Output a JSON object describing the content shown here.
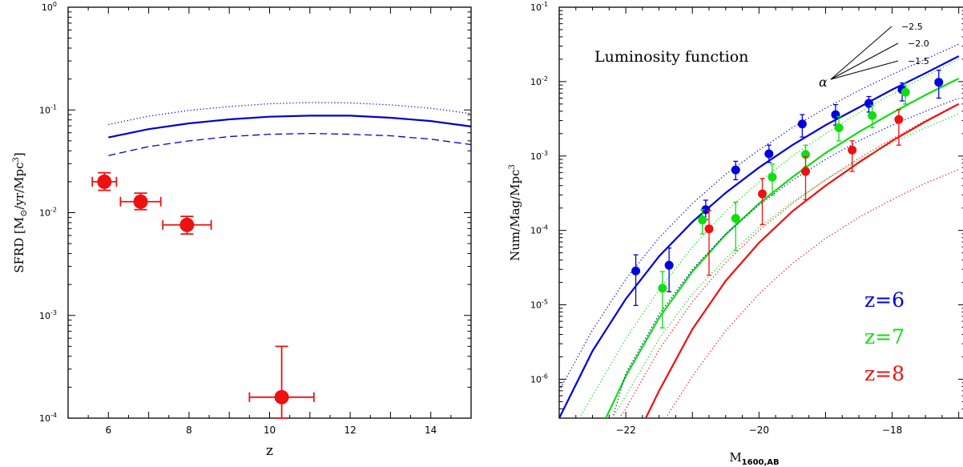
{
  "chart_data": [
    {
      "type": "scatter",
      "xlabel": "z",
      "ylabel_main": "SFRD [M",
      "ylabel_sub": "⊙",
      "ylabel_rest": "/yr/Mpc",
      "ylabel_sup": "3",
      "ylabel_end": "]",
      "xlim": [
        5,
        15
      ],
      "ylim": [
        0.0001,
        1
      ],
      "yscale": "log",
      "xticks": [
        6,
        8,
        10,
        12,
        14
      ],
      "xtick_labels": [
        "6",
        "8",
        "10",
        "12",
        "14"
      ],
      "yticks": [
        0.0001,
        0.001,
        0.01,
        0.1,
        1
      ],
      "ytick_base": [
        "10",
        "10",
        "10",
        "10",
        "10"
      ],
      "ytick_exp": [
        "-4",
        "-3",
        "-2",
        "-1",
        "0"
      ],
      "series": [
        {
          "style": "dotted",
          "color": "#0000cc",
          "x": [
            6,
            7,
            8,
            9,
            10,
            11,
            12,
            13,
            14,
            15
          ],
          "y": [
            0.072,
            0.087,
            0.099,
            0.108,
            0.115,
            0.118,
            0.117,
            0.112,
            0.104,
            0.092
          ]
        },
        {
          "style": "solid",
          "color": "#0000cc",
          "x": [
            6,
            7,
            8,
            9,
            10,
            11,
            12,
            13,
            14,
            15
          ],
          "y": [
            0.054,
            0.065,
            0.074,
            0.081,
            0.086,
            0.088,
            0.088,
            0.084,
            0.078,
            0.069
          ]
        },
        {
          "style": "dashed",
          "color": "#0000cc",
          "x": [
            6,
            7,
            8,
            9,
            10,
            11,
            12,
            13,
            14,
            15
          ],
          "y": [
            0.036,
            0.044,
            0.05,
            0.055,
            0.058,
            0.059,
            0.058,
            0.056,
            0.052,
            0.046
          ]
        }
      ],
      "points": {
        "color": "#ee1111",
        "data": [
          {
            "x": 5.9,
            "y": 0.02,
            "xerr": 0.3,
            "ylo": 0.0165,
            "yhi": 0.0245
          },
          {
            "x": 6.8,
            "y": 0.0128,
            "xerr": 0.5,
            "ylo": 0.0107,
            "yhi": 0.0155
          },
          {
            "x": 7.95,
            "y": 0.0076,
            "xerr": 0.6,
            "ylo": 0.0062,
            "yhi": 0.0092
          },
          {
            "x": 10.3,
            "y": 0.00016,
            "xerr": 0.8,
            "ylo": 0.0001,
            "yhi": 0.0005
          }
        ]
      }
    },
    {
      "type": "scatter",
      "xlabel_main": "M",
      "xlabel_sub": "1600,AB",
      "ylabel": "Num/Mag/Mpc",
      "ylabel_sup": "3",
      "xlim": [
        -23,
        -16.9
      ],
      "ylim": [
        3e-07,
        0.1
      ],
      "yscale": "log",
      "xticks": [
        -22,
        -20,
        -18
      ],
      "xtick_labels": [
        "−22",
        "−20",
        "−18"
      ],
      "yticks": [
        1e-06,
        1e-05,
        0.0001,
        0.001,
        0.01,
        0.1
      ],
      "ytick_base": [
        "10",
        "10",
        "10",
        "10",
        "10",
        "10"
      ],
      "ytick_exp": [
        "-6",
        "-5",
        "-4",
        "-3",
        "-2",
        "-1"
      ],
      "annotation": "Luminosity function",
      "alpha_label": "α",
      "alpha_values": [
        "−2.5",
        "−2.0",
        "−1.5"
      ],
      "legend": [
        {
          "label": "z=6",
          "color": "#0000dd"
        },
        {
          "label": "z=7",
          "color": "#11dd11"
        },
        {
          "label": "z=8",
          "color": "#ee1111"
        }
      ],
      "series": [
        {
          "style": "solid",
          "color": "#0000dd",
          "x": [
            -23,
            -22.5,
            -22,
            -21.5,
            -21,
            -20.5,
            -20,
            -19.5,
            -19,
            -18.5,
            -18,
            -17.5,
            -17
          ],
          "y": [
            3e-07,
            2.4e-06,
            1.2e-05,
            4.5e-05,
            0.00013,
            0.00032,
            0.0007,
            0.0014,
            0.0026,
            0.0045,
            0.0078,
            0.013,
            0.022
          ]
        },
        {
          "style": "solid",
          "color": "#11dd11",
          "x": [
            -22.3,
            -22,
            -21.5,
            -21,
            -20.5,
            -20,
            -19.5,
            -19,
            -18.5,
            -18,
            -17.5,
            -17
          ],
          "y": [
            3e-07,
            1.1e-06,
            6.7e-06,
            2.8e-05,
            8.8e-05,
            0.00023,
            0.00052,
            0.0011,
            0.0021,
            0.0038,
            0.0066,
            0.011
          ]
        },
        {
          "style": "solid",
          "color": "#ee1111",
          "x": [
            -21.7,
            -21.5,
            -21,
            -20.5,
            -20,
            -19.5,
            -19,
            -18.5,
            -18,
            -17.5,
            -17
          ],
          "y": [
            3e-07,
            7e-07,
            4.7e-06,
            2.1e-05,
            6.8e-05,
            0.00018,
            0.0004,
            0.00082,
            0.0016,
            0.0029,
            0.005
          ]
        },
        {
          "style": "dotted",
          "color": "#0000dd",
          "x": [
            -23,
            -22.5,
            -22,
            -21.5,
            -21,
            -20.5,
            -20,
            -19.5,
            -19,
            -18.5,
            -18,
            -17.5,
            -17
          ],
          "y": [
            7e-07,
            4.6e-06,
            2.2e-05,
            8e-05,
            0.00023,
            0.00057,
            0.0012,
            0.0024,
            0.0044,
            0.0076,
            0.0125,
            0.02,
            0.032
          ]
        },
        {
          "style": "dotted",
          "color": "#0000dd",
          "x": [
            -22.2,
            -22,
            -21.5,
            -21,
            -20.5,
            -20,
            -19.5,
            -19,
            -18.5,
            -18,
            -17.5,
            -17
          ],
          "y": [
            3e-07,
            1.2e-06,
            7.5e-06,
            3e-05,
            9e-05,
            0.00022,
            0.00047,
            0.0009,
            0.0016,
            0.0026,
            0.004,
            0.006
          ]
        },
        {
          "style": "dotted",
          "color": "#11dd11",
          "x": [
            -22.7,
            -22.5,
            -22,
            -21.5,
            -21,
            -20.5,
            -20,
            -19.5,
            -19,
            -18.5,
            -18,
            -17.5,
            -17
          ],
          "y": [
            3e-07,
            6e-07,
            3.5e-06,
            1.6e-05,
            6e-05,
            0.00018,
            0.00045,
            0.001,
            0.002,
            0.0038,
            0.0068,
            0.0118,
            0.02
          ]
        },
        {
          "style": "dotted",
          "color": "#11dd11",
          "x": [
            -22.2,
            -22,
            -21.5,
            -21,
            -20.5,
            -20,
            -19.5,
            -19,
            -18.5,
            -18,
            -17.5,
            -17
          ],
          "y": [
            3e-07,
            6e-07,
            3.5e-06,
            1.4e-05,
            4.2e-05,
            0.00011,
            0.00024,
            0.00048,
            0.00088,
            0.0015,
            0.0024,
            0.0037
          ]
        },
        {
          "style": "dotted",
          "color": "#ee1111",
          "x": [
            -22.1,
            -22,
            -21.5,
            -21,
            -20.5,
            -20,
            -19.5,
            -19,
            -18.5,
            -18,
            -17.5,
            -17
          ],
          "y": [
            3e-07,
            4e-07,
            2.5e-06,
            1.1e-05,
            3.7e-05,
            0.0001,
            0.00023,
            0.00048,
            0.00093,
            0.0017,
            0.003,
            0.0051
          ]
        },
        {
          "style": "dotted",
          "color": "#ee1111",
          "x": [
            -21.4,
            -21,
            -20.5,
            -20,
            -19.5,
            -19,
            -18.5,
            -18,
            -17.5,
            -17
          ],
          "y": [
            3e-07,
            1.1e-06,
            4.5e-06,
            1.4e-05,
            3.6e-05,
            7.8e-05,
            0.00015,
            0.00026,
            0.00043,
            0.00066
          ]
        }
      ],
      "points": [
        {
          "color": "#0000dd",
          "data": [
            {
              "x": -21.85,
              "y": 2.85e-05,
              "ylo": 9.8e-06,
              "yhi": 4.7e-05
            },
            {
              "x": -21.35,
              "y": 3.4e-05,
              "ylo": 1.5e-05,
              "yhi": 5.8e-05
            },
            {
              "x": -20.8,
              "y": 0.00019,
              "ylo": 0.00014,
              "yhi": 0.000255
            },
            {
              "x": -20.35,
              "y": 0.00065,
              "ylo": 0.00048,
              "yhi": 0.00085
            },
            {
              "x": -19.85,
              "y": 0.00107,
              "ylo": 0.00082,
              "yhi": 0.0014
            },
            {
              "x": -19.35,
              "y": 0.0027,
              "ylo": 0.0018,
              "yhi": 0.0036
            },
            {
              "x": -18.85,
              "y": 0.0036,
              "ylo": 0.0026,
              "yhi": 0.0049
            },
            {
              "x": -18.35,
              "y": 0.0051,
              "ylo": 0.0039,
              "yhi": 0.0063
            },
            {
              "x": -17.85,
              "y": 0.0078,
              "ylo": 0.0055,
              "yhi": 0.0096
            },
            {
              "x": -17.3,
              "y": 0.0098,
              "ylo": 0.006,
              "yhi": 0.0142
            }
          ]
        },
        {
          "color": "#11dd11",
          "data": [
            {
              "x": -21.45,
              "y": 1.67e-05,
              "ylo": 4.9e-06,
              "yhi": 2.8e-05
            },
            {
              "x": -20.85,
              "y": 0.000138,
              "ylo": 9e-05,
              "yhi": 0.00019
            },
            {
              "x": -20.35,
              "y": 0.000145,
              "ylo": 5.4e-05,
              "yhi": 0.00024
            },
            {
              "x": -19.8,
              "y": 0.00052,
              "ylo": 0.0003,
              "yhi": 0.00078
            },
            {
              "x": -19.3,
              "y": 0.00105,
              "ylo": 0.00072,
              "yhi": 0.0014
            },
            {
              "x": -18.8,
              "y": 0.0024,
              "ylo": 0.0016,
              "yhi": 0.0034
            },
            {
              "x": -18.3,
              "y": 0.0035,
              "ylo": 0.0024,
              "yhi": 0.0048
            },
            {
              "x": -17.8,
              "y": 0.0072,
              "ylo": 0.005,
              "yhi": 0.0095
            }
          ]
        },
        {
          "color": "#ee1111",
          "data": [
            {
              "x": -20.75,
              "y": 0.000105,
              "ylo": 2.5e-05,
              "yhi": 0.000185
            },
            {
              "x": -19.95,
              "y": 0.00031,
              "ylo": 0.00012,
              "yhi": 0.0005
            },
            {
              "x": -19.3,
              "y": 0.00062,
              "ylo": 0.00026,
              "yhi": 0.00098
            },
            {
              "x": -18.6,
              "y": 0.0012,
              "ylo": 0.00062,
              "yhi": 0.0016
            },
            {
              "x": -17.9,
              "y": 0.0031,
              "ylo": 0.0014,
              "yhi": 0.0042
            }
          ]
        }
      ]
    }
  ]
}
